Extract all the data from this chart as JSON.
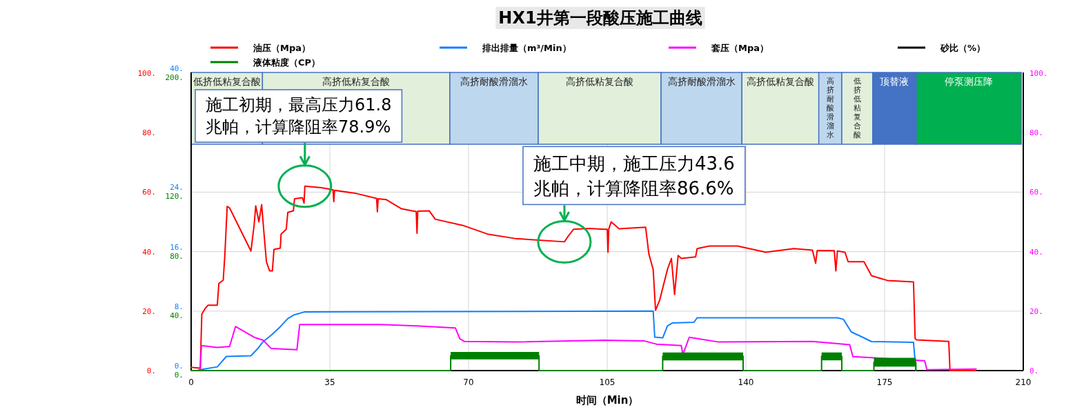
{
  "chart_data": {
    "type": "line",
    "title": "HX1井第一段酸压施工曲线",
    "xlabel": "时间（Min）",
    "xlim": [
      0,
      210
    ],
    "xticks": [
      0,
      35,
      70,
      105,
      140,
      175,
      210
    ],
    "ylim": [
      0,
      100
    ],
    "yticks": [
      {
        "value": 0,
        "label": "0."
      },
      {
        "value": 20,
        "label": "20."
      },
      {
        "value": 40,
        "label": "40."
      },
      {
        "value": 60,
        "label": "60."
      },
      {
        "value": 80,
        "label": "80."
      },
      {
        "value": 100,
        "label": "100."
      }
    ],
    "y2lim": [
      0,
      40
    ],
    "y2ticks": [
      {
        "value": 0,
        "label": "0."
      },
      {
        "value": 8,
        "label": "8."
      },
      {
        "value": 16,
        "label": "16."
      },
      {
        "value": 24,
        "label": "24."
      },
      {
        "value": 40,
        "label": "40."
      }
    ],
    "y3lim": [
      0,
      200
    ],
    "y3ticks": [
      {
        "value": 0,
        "label": "0."
      },
      {
        "value": 40,
        "label": "40."
      },
      {
        "value": 80,
        "label": "80."
      },
      {
        "value": 120,
        "label": "120."
      },
      {
        "value": 200,
        "label": "200."
      }
    ],
    "grid": true,
    "legend": "top",
    "series": [
      {
        "name": "油压（Mpa）",
        "color": "#ff0000",
        "axis": "y",
        "x": [
          0,
          2.3,
          2.7,
          3.6,
          4.3,
          6.6,
          7,
          8.1,
          8.5,
          9.1,
          9.7,
          15.1,
          15.9,
          16.3,
          17.1,
          17.8,
          18.4,
          19,
          19.8,
          20.5,
          20.9,
          22.5,
          22.7,
          24,
          24.4,
          25.8,
          26.1,
          28.1,
          28.5,
          28.7,
          32.9,
          35.8,
          36,
          36.2,
          41.5,
          46.8,
          47,
          47.2,
          49.2,
          53.1,
          55.8,
          56.8,
          57,
          57.2,
          60.1,
          61.6,
          68.6,
          74.8,
          81.8,
          94.2,
          95,
          96.5,
          100.4,
          104.3,
          105,
          105.2,
          105.4,
          106,
          108,
          114.7,
          115.5,
          116.6,
          117.2,
          118.2,
          120.2,
          121.2,
          122,
          122.9,
          123.7,
          127.3,
          127.7,
          130.8,
          137.9,
          145,
          152.1,
          156.8,
          157.6,
          158,
          162.3,
          162.7,
          163.1,
          165,
          165.8,
          169.8,
          171.7,
          175.7,
          182.3,
          182.7,
          183.1,
          191.2,
          191.5,
          198
        ],
        "values": [
          1.1,
          0.8,
          19,
          21,
          22,
          22,
          29.3,
          30.4,
          38.7,
          55.2,
          54.7,
          40.2,
          49,
          55.4,
          50,
          55.8,
          45.9,
          36.6,
          33.5,
          33.5,
          40.7,
          41.2,
          45.9,
          47.5,
          53.2,
          53.7,
          57.8,
          58.1,
          56.3,
          62,
          61.5,
          60.8,
          56.8,
          60.6,
          59.6,
          57.9,
          53.4,
          57.8,
          57.5,
          54.4,
          53.7,
          53.5,
          46.2,
          53.6,
          53.7,
          50.9,
          48.8,
          45.9,
          44.4,
          43.3,
          44.9,
          47.5,
          47.8,
          47.5,
          47.5,
          39.8,
          47.6,
          50,
          47.7,
          48.2,
          39.3,
          34,
          20.3,
          23.5,
          34,
          37.7,
          25.6,
          38.7,
          37.7,
          38.2,
          41,
          41.9,
          41.9,
          39.8,
          41,
          40.5,
          36.1,
          40.4,
          40.3,
          33.5,
          40.2,
          39.8,
          36.6,
          36.6,
          31.9,
          30.3,
          29.8,
          10.8,
          10.3,
          9.8,
          0,
          0
        ]
      },
      {
        "name": "排出排量（m³/Min）",
        "color": "#0f80ff",
        "axis": "y2",
        "x": [
          1.9,
          6.6,
          8.9,
          15.1,
          16.7,
          18.2,
          20.5,
          22.5,
          24.4,
          26,
          28.7,
          116.6,
          117,
          119,
          120.2,
          121.4,
          126.9,
          127.7,
          163.1,
          164.6,
          166.6,
          169.4,
          171.7,
          182.3,
          182.9
        ],
        "values": [
          0.1,
          0.5,
          1.9,
          2,
          2.9,
          3.9,
          4.9,
          5.9,
          7,
          7.5,
          7.9,
          8,
          4.5,
          4.4,
          6,
          6.4,
          6.5,
          7.1,
          7.1,
          6.9,
          5.2,
          4.5,
          3.9,
          3.8,
          0
        ]
      },
      {
        "name": "套压（Mpa）",
        "color": "#ff00ff",
        "x": [
          2.3,
          2.6,
          6.6,
          9.7,
          11.2,
          15.9,
          18.2,
          20.2,
          26.7,
          27.4,
          47.7,
          57,
          66.7,
          67.8,
          69,
          81.8,
          104.3,
          114.3,
          117.4,
          123.7,
          124.1,
          125.7,
          133.2,
          156.8,
          166.2,
          167,
          185.1,
          185.7,
          198.1
        ],
        "values": [
          0.3,
          8.4,
          7.8,
          8.1,
          14.8,
          11.2,
          10.2,
          7.4,
          7,
          15.5,
          15.5,
          15,
          14.3,
          10.7,
          9.8,
          9.6,
          10.2,
          10,
          8.9,
          8.4,
          5.4,
          11.2,
          9.6,
          9.8,
          8.7,
          4.7,
          3.3,
          0.3,
          0.5
        ]
      },
      {
        "name": "砂比（%）",
        "color": "#000000"
      },
      {
        "name": "液体粘度（CP）",
        "color": "#008000",
        "axis": "y3",
        "x": [
          0,
          65.5,
          65.5,
          87.8,
          87.8,
          119,
          119,
          139.3,
          139.3,
          159.1,
          159.1,
          164.2,
          164.2,
          172.3,
          172.3,
          182.9,
          182.9
        ],
        "values": [
          0,
          0,
          10,
          10,
          0,
          0,
          9.6,
          9.6,
          0,
          0,
          9.6,
          9.6,
          0,
          0,
          5.6,
          5.6,
          0
        ],
        "lower": [
          null,
          null,
          7.5,
          7.5,
          null,
          null,
          6.9,
          6.9,
          null,
          null,
          6.9,
          6.9,
          null,
          null,
          2.7,
          2.7,
          null
        ],
        "upper": [
          null,
          null,
          12.5,
          12.5,
          null,
          null,
          12.2,
          12.2,
          null,
          null,
          12.2,
          12.2,
          null,
          null,
          8.6,
          8.6,
          null
        ]
      }
    ],
    "bands": [
      {
        "axis": "x",
        "from": 0,
        "to": 18,
        "label": "低挤低粘复合酸",
        "color": "#e2efda"
      },
      {
        "axis": "x",
        "from": 18,
        "to": 65.3,
        "label": "高挤低粘复合酸",
        "color": "#e2efda"
      },
      {
        "axis": "x",
        "from": 65.3,
        "to": 87.6,
        "label": "高挤耐酸滑溜水",
        "color": "#bdd7ee"
      },
      {
        "axis": "x",
        "from": 87.6,
        "to": 118.6,
        "label": "高挤低粘复合酸",
        "color": "#e2efda"
      },
      {
        "axis": "x",
        "from": 118.6,
        "to": 139,
        "label": "高挤耐酸滑溜水",
        "color": "#bdd7ee"
      },
      {
        "axis": "x",
        "from": 139,
        "to": 158.4,
        "label": "高挤低粘复合酸",
        "color": "#e2efda"
      },
      {
        "axis": "x",
        "from": 158.4,
        "to": 164.2,
        "label": "高挤耐酸滑溜水",
        "color": "#bdd7ee"
      },
      {
        "axis": "x",
        "from": 164.2,
        "to": 172,
        "label": "低挤低粘复合酸",
        "color": "#e2efda"
      },
      {
        "axis": "x",
        "from": 172,
        "to": 183,
        "label": "顶替液",
        "color": "#4472c4"
      },
      {
        "axis": "x",
        "from": 183,
        "to": 209.5,
        "label": "停泵测压降",
        "color": "#00b050"
      }
    ],
    "annotations": [
      {
        "text": "施工初期，最高压力61.8\n兆帕，计算降阻率78.9%",
        "x": 28.7,
        "y": 62
      },
      {
        "text": "施工中期，施工压力43.6\n兆帕，计算降阻率86.6%",
        "x": 94.2,
        "y": 43.3
      }
    ]
  }
}
